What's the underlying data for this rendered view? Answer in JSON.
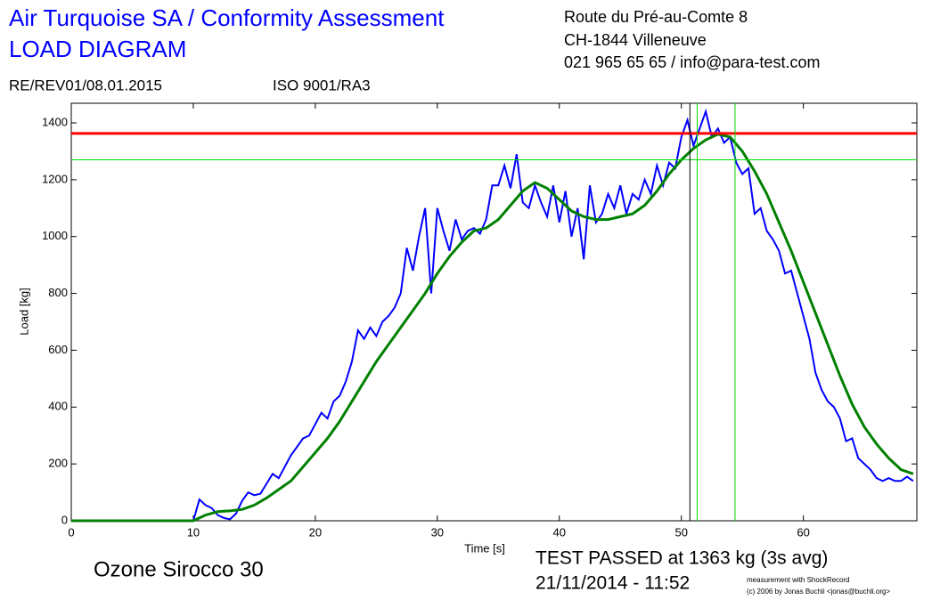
{
  "header": {
    "title_lines": [
      "Air Turquoise SA / Conformity Assessment",
      "LOAD DIAGRAM"
    ],
    "address_lines": [
      "Route du Pré-au-Comte 8",
      "CH-1844 Villeneuve",
      "021 965 65 65 / info@para-test.com"
    ],
    "reference": "RE/REV01/08.01.2015",
    "iso": "ISO 9001/RA3"
  },
  "chart_data": {
    "type": "line",
    "x_label": "Time [s]",
    "y_label": "Load [kg]",
    "xlim": [
      0,
      69.3
    ],
    "ylim": [
      0,
      1469
    ],
    "xticks": [
      0,
      10,
      20,
      30,
      40,
      50,
      60
    ],
    "yticks": [
      0,
      200,
      400,
      600,
      800,
      1000,
      1200,
      1400
    ],
    "series": [
      {
        "color": "#0000ff",
        "x": [
          0,
          10,
          10.5,
          11,
          11.5,
          12,
          12.5,
          13,
          13.5,
          14,
          14.5,
          15,
          15.5,
          16,
          16.5,
          17,
          17.5,
          18,
          18.5,
          19,
          19.5,
          20,
          20.5,
          21,
          21.5,
          22,
          22.5,
          23,
          23.5,
          24,
          24.5,
          25,
          25.5,
          26,
          26.5,
          27,
          27.5,
          28,
          28.5,
          29,
          29.5,
          30,
          30.5,
          31,
          31.5,
          32,
          32.5,
          33,
          33.5,
          34,
          34.5,
          35,
          35.5,
          36,
          36.5,
          37,
          37.5,
          38,
          38.5,
          39,
          39.5,
          40,
          40.5,
          41,
          41.5,
          42,
          42.5,
          43,
          43.5,
          44,
          44.5,
          45,
          45.5,
          46,
          46.5,
          47,
          47.5,
          48,
          48.5,
          49,
          49.5,
          50,
          50.5,
          51,
          51.5,
          52,
          52.5,
          53,
          53.5,
          54,
          54.5,
          55,
          55.5,
          56,
          56.5,
          57,
          57.5,
          58,
          58.5,
          59,
          59.5,
          60,
          60.5,
          61,
          61.5,
          62,
          62.5,
          63,
          63.5,
          64,
          64.5,
          65,
          65.5,
          66,
          66.5,
          67,
          67.5,
          68,
          68.5,
          69
        ],
        "values": [
          0,
          0,
          75,
          55,
          45,
          20,
          10,
          5,
          25,
          70,
          100,
          90,
          95,
          130,
          165,
          150,
          190,
          230,
          260,
          290,
          300,
          340,
          380,
          360,
          420,
          440,
          490,
          560,
          670,
          640,
          680,
          650,
          700,
          720,
          750,
          800,
          960,
          880,
          1000,
          1100,
          800,
          1100,
          1020,
          950,
          1060,
          990,
          1020,
          1030,
          1010,
          1060,
          1180,
          1180,
          1250,
          1170,
          1290,
          1120,
          1100,
          1180,
          1120,
          1070,
          1180,
          1050,
          1160,
          1000,
          1100,
          920,
          1180,
          1050,
          1080,
          1150,
          1100,
          1180,
          1080,
          1150,
          1130,
          1200,
          1150,
          1250,
          1180,
          1260,
          1240,
          1350,
          1410,
          1320,
          1380,
          1440,
          1350,
          1380,
          1330,
          1350,
          1260,
          1220,
          1240,
          1080,
          1100,
          1020,
          990,
          950,
          870,
          880,
          800,
          720,
          640,
          520,
          460,
          420,
          400,
          360,
          280,
          290,
          220,
          200,
          180,
          150,
          140,
          150,
          140,
          140,
          155,
          140
        ]
      },
      {
        "color": "#008000",
        "x": [
          0,
          10,
          11,
          12,
          13,
          14,
          15,
          16,
          17,
          18,
          19,
          20,
          21,
          22,
          23,
          24,
          25,
          26,
          27,
          28,
          29,
          30,
          31,
          32,
          33,
          34,
          35,
          36,
          37,
          38,
          39,
          40,
          41,
          42,
          43,
          44,
          45,
          46,
          47,
          48,
          49,
          50,
          51,
          52,
          53,
          54,
          55,
          56,
          57,
          58,
          59,
          60,
          61,
          62,
          63,
          64,
          65,
          66,
          67,
          68,
          69
        ],
        "values": [
          0,
          0,
          20,
          32,
          35,
          40,
          55,
          80,
          110,
          140,
          190,
          240,
          290,
          350,
          420,
          490,
          560,
          620,
          680,
          740,
          800,
          870,
          930,
          980,
          1020,
          1030,
          1060,
          1110,
          1160,
          1190,
          1170,
          1130,
          1090,
          1070,
          1060,
          1060,
          1070,
          1080,
          1110,
          1160,
          1220,
          1270,
          1310,
          1340,
          1360,
          1350,
          1300,
          1230,
          1150,
          1050,
          950,
          840,
          730,
          620,
          510,
          410,
          330,
          270,
          220,
          180,
          165
        ]
      }
    ],
    "reference_lines": [
      {
        "axis": "y",
        "value": 1363,
        "color": "#ff0000"
      },
      {
        "axis": "y",
        "value": 1270,
        "color": "#00dd00"
      },
      {
        "axis": "x",
        "value": 50.7,
        "color": "#000000"
      },
      {
        "axis": "x",
        "value": 51.3,
        "color": "#00dd00"
      },
      {
        "axis": "x",
        "value": 54.4,
        "color": "#00dd00"
      }
    ]
  },
  "footer": {
    "product": "Ozone Sirocco 30",
    "result": "TEST PASSED at 1363 kg (3s avg)",
    "datetime": "21/11/2014 - 11:52",
    "credit_lines": [
      "measurement with ShockRecord",
      "(c) 2006 by Jonas Buchli <jonas@buchli.org>"
    ]
  }
}
